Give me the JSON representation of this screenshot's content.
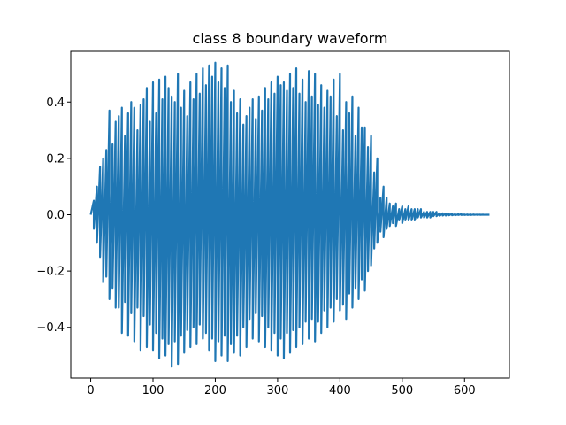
{
  "chart_data": {
    "type": "line",
    "title": "class 8 boundary waveform",
    "xlabel": "",
    "ylabel": "",
    "xlim": [
      -32,
      672
    ],
    "ylim": [
      -0.58,
      0.58
    ],
    "xticks": [
      0,
      100,
      200,
      300,
      400,
      500,
      600
    ],
    "yticks": [
      -0.4,
      -0.2,
      0.0,
      0.2,
      0.4
    ],
    "ytick_labels": [
      "−0.4",
      "−0.2",
      "0.0",
      "0.2",
      "0.4"
    ],
    "grid": false,
    "legend": "none",
    "series_color": "#1f77b4",
    "series": [
      {
        "x": [
          0,
          5,
          10,
          15,
          20,
          25,
          30,
          35,
          40,
          45,
          50,
          55,
          60,
          65,
          70,
          75,
          80,
          85,
          90,
          95,
          100,
          105,
          110,
          115,
          120,
          125,
          130,
          135,
          140,
          145,
          150,
          155,
          160,
          165,
          170,
          175,
          180,
          185,
          190,
          195,
          200,
          205,
          210,
          215,
          220,
          225,
          230,
          235,
          240,
          245,
          250,
          255,
          260,
          265,
          270,
          275,
          280,
          285,
          290,
          295,
          300,
          305,
          310,
          315,
          320,
          325,
          330,
          335,
          340,
          345,
          350,
          355,
          360,
          365,
          370,
          375,
          380,
          385,
          390,
          395,
          400,
          405,
          410,
          415,
          420,
          425,
          430,
          435,
          440,
          445,
          450,
          455,
          460,
          465,
          470,
          475,
          480,
          485,
          490,
          495,
          500,
          505,
          510,
          515,
          520,
          525,
          530,
          535,
          540,
          545,
          550,
          555,
          560,
          565,
          570,
          575,
          580,
          585,
          590,
          595,
          600,
          605,
          610,
          615,
          620,
          625,
          630,
          635,
          640
        ],
        "upper": [
          0.0,
          0.05,
          0.1,
          0.17,
          0.2,
          0.23,
          0.37,
          0.25,
          0.33,
          0.35,
          0.38,
          0.28,
          0.36,
          0.4,
          0.38,
          0.3,
          0.39,
          0.41,
          0.45,
          0.33,
          0.47,
          0.36,
          0.48,
          0.41,
          0.49,
          0.45,
          0.42,
          0.4,
          0.5,
          0.38,
          0.44,
          0.35,
          0.47,
          0.41,
          0.5,
          0.43,
          0.52,
          0.46,
          0.53,
          0.49,
          0.54,
          0.47,
          0.52,
          0.45,
          0.53,
          0.4,
          0.44,
          0.36,
          0.41,
          0.32,
          0.35,
          0.38,
          0.41,
          0.34,
          0.42,
          0.37,
          0.45,
          0.41,
          0.47,
          0.43,
          0.49,
          0.46,
          0.47,
          0.44,
          0.5,
          0.45,
          0.52,
          0.43,
          0.48,
          0.4,
          0.51,
          0.42,
          0.5,
          0.39,
          0.46,
          0.38,
          0.44,
          0.42,
          0.48,
          0.35,
          0.5,
          0.3,
          0.4,
          0.36,
          0.42,
          0.28,
          0.38,
          0.31,
          0.31,
          0.24,
          0.28,
          0.15,
          0.2,
          0.06,
          0.1,
          0.06,
          0.04,
          0.03,
          0.04,
          0.02,
          0.03,
          0.02,
          0.03,
          0.02,
          0.02,
          0.02,
          0.02,
          0.01,
          0.01,
          0.01,
          0.01,
          0.01,
          0.005,
          0.005,
          0.004,
          0.003,
          0.003,
          0.002,
          0.002,
          0.002,
          0.001,
          0.001,
          0.001,
          0.001,
          0.0005,
          0.0005,
          0.0003,
          0.0002,
          0.0
        ],
        "lower": [
          0.0,
          -0.05,
          -0.1,
          -0.15,
          -0.24,
          -0.22,
          -0.3,
          -0.26,
          -0.33,
          -0.33,
          -0.42,
          -0.31,
          -0.43,
          -0.35,
          -0.45,
          -0.33,
          -0.48,
          -0.36,
          -0.47,
          -0.39,
          -0.48,
          -0.42,
          -0.51,
          -0.44,
          -0.5,
          -0.46,
          -0.54,
          -0.45,
          -0.53,
          -0.43,
          -0.49,
          -0.41,
          -0.47,
          -0.4,
          -0.46,
          -0.39,
          -0.44,
          -0.42,
          -0.48,
          -0.44,
          -0.52,
          -0.45,
          -0.5,
          -0.43,
          -0.52,
          -0.46,
          -0.49,
          -0.43,
          -0.5,
          -0.4,
          -0.47,
          -0.37,
          -0.44,
          -0.35,
          -0.45,
          -0.36,
          -0.47,
          -0.4,
          -0.48,
          -0.42,
          -0.5,
          -0.44,
          -0.51,
          -0.42,
          -0.49,
          -0.41,
          -0.47,
          -0.4,
          -0.46,
          -0.38,
          -0.44,
          -0.37,
          -0.45,
          -0.38,
          -0.42,
          -0.34,
          -0.4,
          -0.33,
          -0.38,
          -0.3,
          -0.34,
          -0.32,
          -0.37,
          -0.28,
          -0.33,
          -0.26,
          -0.3,
          -0.23,
          -0.27,
          -0.2,
          -0.18,
          -0.12,
          -0.1,
          -0.06,
          -0.08,
          -0.05,
          -0.04,
          -0.03,
          -0.04,
          -0.02,
          -0.03,
          -0.02,
          -0.02,
          -0.02,
          -0.02,
          -0.01,
          -0.01,
          -0.01,
          -0.01,
          -0.01,
          -0.005,
          -0.005,
          -0.004,
          -0.003,
          -0.003,
          -0.002,
          -0.002,
          -0.002,
          -0.001,
          -0.001,
          -0.001,
          -0.001,
          -0.001,
          -0.0005,
          -0.0005,
          -0.0003,
          -0.0002,
          -0.0001,
          0.0
        ]
      }
    ]
  }
}
